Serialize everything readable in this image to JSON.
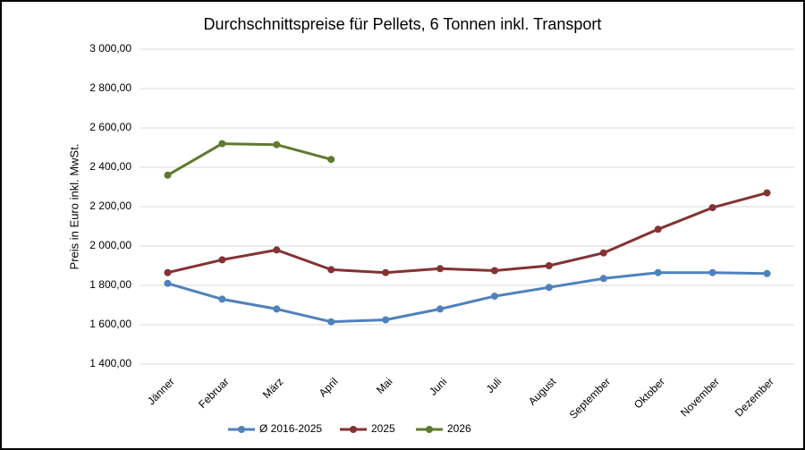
{
  "chart_data": {
    "type": "line",
    "title": "Durchschnittspreise für Pellets, 6 Tonnen inkl. Transport",
    "y_label": "Preis in Euro inkl. MwSt.",
    "categories": [
      "Jänner",
      "Februar",
      "März",
      "April",
      "Mai",
      "Juni",
      "Juli",
      "August",
      "September",
      "Oktober",
      "November",
      "Dezember"
    ],
    "series": [
      {
        "name": "Ø 2016-2025",
        "color": "#4f81bd",
        "values": [
          1810,
          1730,
          1680,
          1615,
          1625,
          1680,
          1745,
          1790,
          1835,
          1865,
          1865,
          1860
        ]
      },
      {
        "name": "2025",
        "color": "#843232",
        "values": [
          1865,
          1930,
          1980,
          1880,
          1865,
          1885,
          1875,
          1900,
          1965,
          2085,
          2195,
          2270
        ]
      },
      {
        "name": "2026",
        "color": "#5f7a2e",
        "values": [
          2360,
          2520,
          2515,
          2440,
          null,
          null,
          null,
          null,
          null,
          null,
          null,
          null
        ]
      }
    ],
    "ylim": [
      1400,
      3000
    ],
    "yticks": [
      {
        "value": 1400,
        "label": "1 400,00"
      },
      {
        "value": 1600,
        "label": "1 600,00"
      },
      {
        "value": 1800,
        "label": "1 800,00"
      },
      {
        "value": 2000,
        "label": "2 000,00"
      },
      {
        "value": 2200,
        "label": "2 200,00"
      },
      {
        "value": 2400,
        "label": "2 400,00"
      },
      {
        "value": 2600,
        "label": "2 600,00"
      },
      {
        "value": 2800,
        "label": "2 800,00"
      },
      {
        "value": 3000,
        "label": "3 000,00"
      }
    ],
    "grid": true,
    "legend": "bottom"
  }
}
